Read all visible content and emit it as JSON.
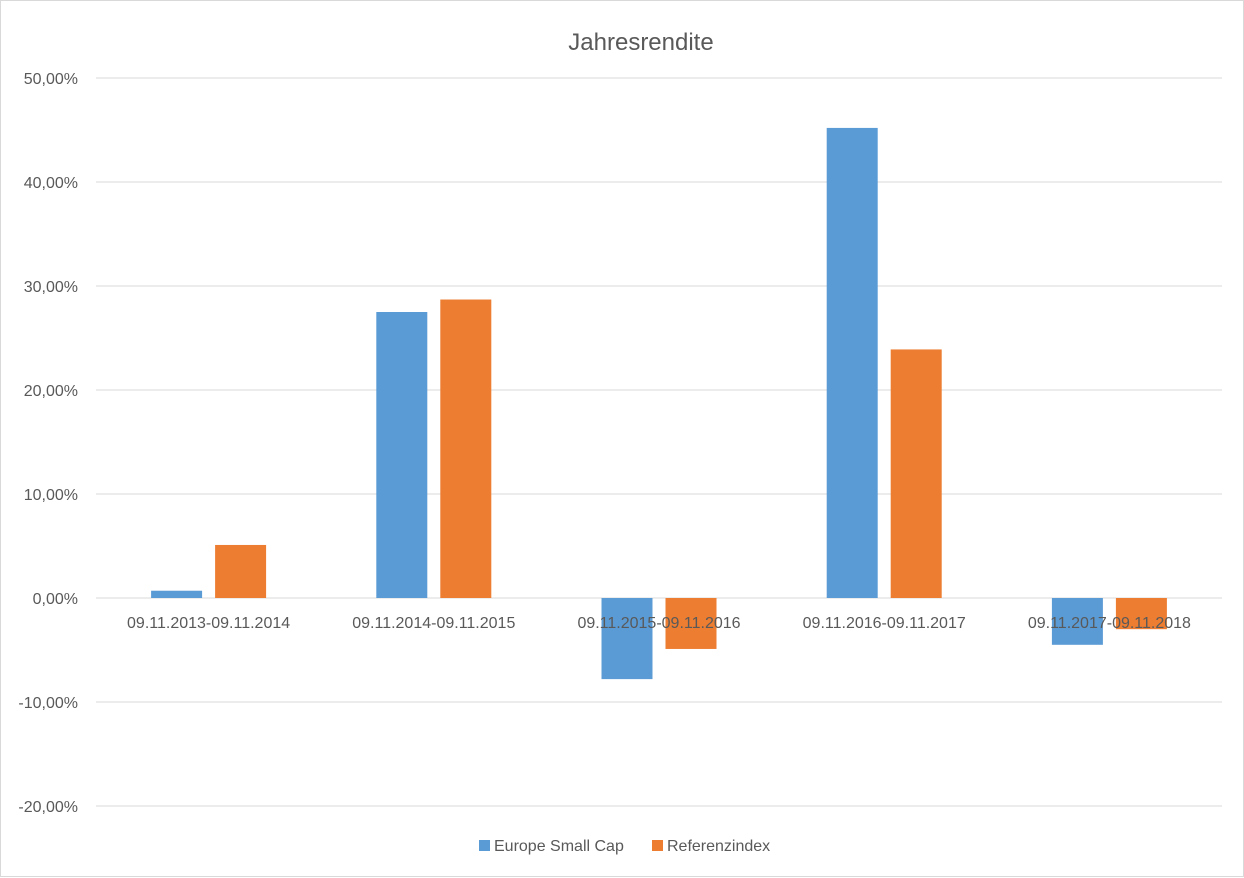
{
  "chart_data": {
    "type": "bar",
    "title": "Jahresrendite",
    "xlabel": "",
    "ylabel": "",
    "categories": [
      "09.11.2013-09.11.2014",
      "09.11.2014-09.11.2015",
      "09.11.2015-09.11.2016",
      "09.11.2016-09.11.2017",
      "09.11.2017-09.11.2018"
    ],
    "series": [
      {
        "name": "Europe Small Cap",
        "color": "#5b9bd5",
        "values": [
          0.7,
          27.5,
          -7.8,
          45.2,
          -4.5
        ]
      },
      {
        "name": "Referenzindex",
        "color": "#ed7d31",
        "values": [
          5.1,
          28.7,
          -4.9,
          23.9,
          -3.0
        ]
      }
    ],
    "ylim": [
      -20,
      50
    ],
    "yticks": [
      50,
      40,
      30,
      20,
      10,
      0,
      -10,
      -20
    ],
    "ytick_labels": [
      "50,00%",
      "40,00%",
      "30,00%",
      "20,00%",
      "10,00%",
      "0,00%",
      "-10,00%",
      "-20,00%"
    ],
    "grid": true,
    "legend_position": "bottom",
    "gridline_color": "#d9d9d9"
  }
}
